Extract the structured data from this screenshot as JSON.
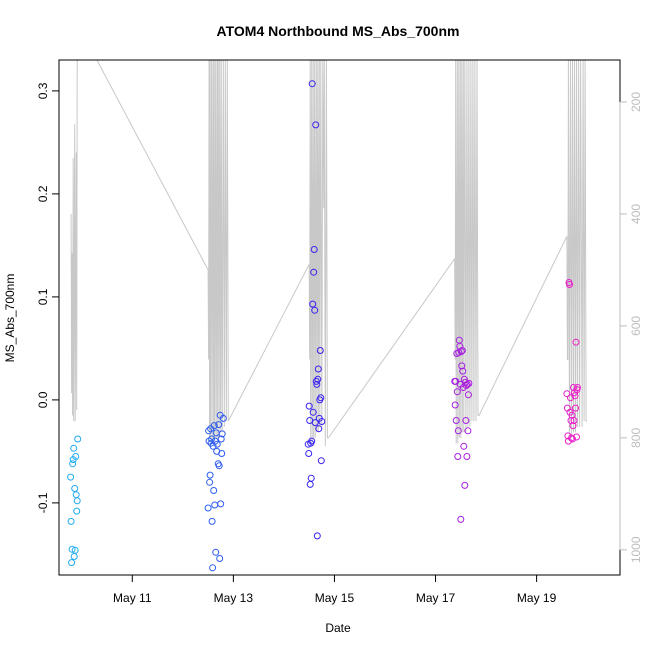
{
  "chart_data": {
    "type": "scatter",
    "title": "ATOM4 Northbound MS_Abs_700nm",
    "xlabel": "Date",
    "ylabel": "MS_Abs_700nm",
    "xlim": [
      9.55,
      20.65
    ],
    "ylim": [
      -0.17,
      0.33
    ],
    "x_ticks": [
      {
        "value": 11,
        "label": "May 11"
      },
      {
        "value": 13,
        "label": "May 13"
      },
      {
        "value": 15,
        "label": "May 15"
      },
      {
        "value": 17,
        "label": "May 17"
      },
      {
        "value": 19,
        "label": "May 19"
      }
    ],
    "y_ticks": [
      {
        "value": -0.1,
        "label": "-0.1"
      },
      {
        "value": 0.0,
        "label": "0.0"
      },
      {
        "value": 0.1,
        "label": "0.1"
      },
      {
        "value": 0.2,
        "label": "0.2"
      },
      {
        "value": 0.3,
        "label": "0.3"
      }
    ],
    "secondary_axis": {
      "side": "right",
      "reversed": true,
      "range": [
        1045,
        125
      ],
      "ticks": [
        {
          "value": 200,
          "label": "200"
        },
        {
          "value": 400,
          "label": "400"
        },
        {
          "value": 600,
          "label": "600"
        },
        {
          "value": 800,
          "label": "800"
        },
        {
          "value": 1000,
          "label": "1000"
        }
      ],
      "color": "#bdbdbd"
    },
    "depth_trace": {
      "color": "#c8c8c8",
      "x": [
        9.79,
        9.8,
        9.81,
        9.82,
        9.83,
        9.84,
        9.86,
        9.87,
        9.89,
        9.9,
        9.91,
        10.3,
        12.5,
        12.51,
        12.52,
        12.53,
        12.54,
        12.55,
        12.57,
        12.58,
        12.6,
        12.61,
        12.62,
        12.63,
        12.65,
        12.66,
        12.68,
        12.69,
        12.7,
        12.72,
        12.73,
        12.75,
        12.76,
        12.78,
        12.8,
        12.82,
        12.84,
        12.86,
        12.88,
        12.9,
        14.5,
        14.51,
        14.52,
        14.53,
        14.55,
        14.56,
        14.58,
        14.59,
        14.61,
        14.62,
        14.64,
        14.65,
        14.67,
        14.68,
        14.7,
        14.71,
        14.73,
        14.75,
        14.77,
        14.79,
        14.8,
        14.82,
        14.84,
        14.86,
        14.88,
        17.38,
        17.39,
        17.4,
        17.41,
        17.43,
        17.44,
        17.46,
        17.47,
        17.49,
        17.5,
        17.52,
        17.53,
        17.55,
        17.56,
        17.58,
        17.6,
        17.62,
        17.64,
        17.66,
        17.68,
        17.7,
        17.72,
        17.74,
        17.76,
        17.78,
        17.8,
        17.82,
        17.84,
        17.86,
        19.6,
        19.61,
        19.62,
        19.63,
        19.65,
        19.67,
        19.69,
        19.71,
        19.73,
        19.75,
        19.77,
        19.79,
        19.81,
        19.83,
        19.85,
        19.87,
        19.9,
        19.92,
        19.94,
        19.96,
        19.98,
        20.0
      ],
      "y": [
        400,
        720,
        470,
        760,
        300,
        770,
        240,
        770,
        290,
        750,
        125,
        125,
        500,
        660,
        125,
        800,
        125,
        800,
        125,
        810,
        125,
        810,
        125,
        800,
        125,
        800,
        125,
        800,
        125,
        800,
        125,
        790,
        125,
        790,
        125,
        780,
        125,
        770,
        125,
        770,
        490,
        660,
        125,
        810,
        125,
        810,
        125,
        800,
        125,
        800,
        125,
        790,
        125,
        790,
        125,
        780,
        125,
        780,
        125,
        390,
        125,
        815,
        125,
        800,
        800,
        480,
        660,
        125,
        810,
        125,
        810,
        125,
        800,
        125,
        800,
        125,
        790,
        125,
        790,
        125,
        790,
        125,
        780,
        125,
        780,
        125,
        770,
        125,
        770,
        125,
        770,
        125,
        760,
        760,
        440,
        660,
        660,
        125,
        800,
        125,
        800,
        125,
        790,
        125,
        790,
        125,
        780,
        125,
        780,
        125,
        780,
        125,
        770,
        125,
        770,
        770
      ]
    },
    "points": [
      {
        "x": 9.78,
        "y": -0.075
      },
      {
        "x": 9.79,
        "y": -0.118
      },
      {
        "x": 9.8,
        "y": -0.158
      },
      {
        "x": 9.81,
        "y": -0.145
      },
      {
        "x": 9.82,
        "y": -0.062
      },
      {
        "x": 9.83,
        "y": -0.058
      },
      {
        "x": 9.84,
        "y": -0.047
      },
      {
        "x": 9.85,
        "y": -0.152
      },
      {
        "x": 9.86,
        "y": -0.086
      },
      {
        "x": 9.87,
        "y": -0.146
      },
      {
        "x": 9.88,
        "y": -0.055
      },
      {
        "x": 9.89,
        "y": -0.092
      },
      {
        "x": 9.9,
        "y": -0.108
      },
      {
        "x": 9.91,
        "y": -0.098
      },
      {
        "x": 9.92,
        "y": -0.038
      },
      {
        "x": 12.5,
        "y": -0.105
      },
      {
        "x": 12.51,
        "y": -0.03
      },
      {
        "x": 12.52,
        "y": -0.04
      },
      {
        "x": 12.53,
        "y": -0.08
      },
      {
        "x": 12.54,
        "y": -0.073
      },
      {
        "x": 12.55,
        "y": -0.028
      },
      {
        "x": 12.56,
        "y": -0.042
      },
      {
        "x": 12.57,
        "y": -0.038
      },
      {
        "x": 12.58,
        "y": -0.118
      },
      {
        "x": 12.59,
        "y": -0.163
      },
      {
        "x": 12.6,
        "y": -0.045
      },
      {
        "x": 12.61,
        "y": -0.088
      },
      {
        "x": 12.62,
        "y": -0.025
      },
      {
        "x": 12.63,
        "y": -0.102
      },
      {
        "x": 12.64,
        "y": -0.04
      },
      {
        "x": 12.65,
        "y": -0.148
      },
      {
        "x": 12.66,
        "y": -0.032
      },
      {
        "x": 12.67,
        "y": -0.05
      },
      {
        "x": 12.68,
        "y": -0.043
      },
      {
        "x": 12.7,
        "y": -0.062
      },
      {
        "x": 12.71,
        "y": -0.024
      },
      {
        "x": 12.72,
        "y": -0.064
      },
      {
        "x": 12.73,
        "y": -0.154
      },
      {
        "x": 12.74,
        "y": -0.015
      },
      {
        "x": 12.75,
        "y": -0.101
      },
      {
        "x": 12.76,
        "y": -0.038
      },
      {
        "x": 12.77,
        "y": -0.052
      },
      {
        "x": 12.78,
        "y": -0.033
      },
      {
        "x": 12.8,
        "y": -0.018
      },
      {
        "x": 14.48,
        "y": -0.043
      },
      {
        "x": 14.49,
        "y": -0.052
      },
      {
        "x": 14.5,
        "y": -0.006
      },
      {
        "x": 14.51,
        "y": -0.02
      },
      {
        "x": 14.52,
        "y": -0.082
      },
      {
        "x": 14.53,
        "y": -0.042
      },
      {
        "x": 14.54,
        "y": -0.076
      },
      {
        "x": 14.55,
        "y": -0.04
      },
      {
        "x": 14.56,
        "y": 0.307
      },
      {
        "x": 14.57,
        "y": 0.093
      },
      {
        "x": 14.58,
        "y": -0.012
      },
      {
        "x": 14.59,
        "y": 0.124
      },
      {
        "x": 14.6,
        "y": 0.146
      },
      {
        "x": 14.61,
        "y": 0.087
      },
      {
        "x": 14.62,
        "y": -0.022
      },
      {
        "x": 14.63,
        "y": 0.267
      },
      {
        "x": 14.64,
        "y": 0.018
      },
      {
        "x": 14.65,
        "y": 0.015
      },
      {
        "x": 14.66,
        "y": -0.132
      },
      {
        "x": 14.67,
        "y": 0.02
      },
      {
        "x": 14.68,
        "y": 0.03
      },
      {
        "x": 14.69,
        "y": -0.028
      },
      {
        "x": 14.7,
        "y": -0.018
      },
      {
        "x": 14.71,
        "y": 0.0
      },
      {
        "x": 14.72,
        "y": 0.048
      },
      {
        "x": 14.73,
        "y": 0.002
      },
      {
        "x": 14.74,
        "y": -0.059
      },
      {
        "x": 14.75,
        "y": -0.021
      },
      {
        "x": 17.38,
        "y": 0.018
      },
      {
        "x": 17.39,
        "y": -0.005
      },
      {
        "x": 17.4,
        "y": 0.018
      },
      {
        "x": 17.41,
        "y": -0.02
      },
      {
        "x": 17.42,
        "y": 0.045
      },
      {
        "x": 17.43,
        "y": 0.008
      },
      {
        "x": 17.44,
        "y": -0.055
      },
      {
        "x": 17.45,
        "y": -0.03
      },
      {
        "x": 17.46,
        "y": 0.046
      },
      {
        "x": 17.47,
        "y": 0.058
      },
      {
        "x": 17.48,
        "y": 0.052
      },
      {
        "x": 17.49,
        "y": 0.015
      },
      {
        "x": 17.5,
        "y": -0.116
      },
      {
        "x": 17.51,
        "y": 0.047
      },
      {
        "x": 17.52,
        "y": 0.033
      },
      {
        "x": 17.53,
        "y": 0.048
      },
      {
        "x": 17.54,
        "y": 0.028
      },
      {
        "x": 17.55,
        "y": 0.012
      },
      {
        "x": 17.56,
        "y": -0.045
      },
      {
        "x": 17.57,
        "y": 0.02
      },
      {
        "x": 17.58,
        "y": -0.083
      },
      {
        "x": 17.59,
        "y": 0.017
      },
      {
        "x": 17.6,
        "y": -0.02
      },
      {
        "x": 17.61,
        "y": 0.014
      },
      {
        "x": 17.62,
        "y": -0.055
      },
      {
        "x": 17.63,
        "y": 0.015
      },
      {
        "x": 17.64,
        "y": -0.03
      },
      {
        "x": 17.65,
        "y": 0.005
      },
      {
        "x": 17.66,
        "y": 0.016
      },
      {
        "x": 19.6,
        "y": 0.006
      },
      {
        "x": 19.61,
        "y": -0.008
      },
      {
        "x": 19.62,
        "y": -0.035
      },
      {
        "x": 19.63,
        "y": -0.04
      },
      {
        "x": 19.64,
        "y": 0.114
      },
      {
        "x": 19.65,
        "y": 0.112
      },
      {
        "x": 19.66,
        "y": -0.012
      },
      {
        "x": 19.67,
        "y": 0.002
      },
      {
        "x": 19.68,
        "y": -0.02
      },
      {
        "x": 19.69,
        "y": -0.037
      },
      {
        "x": 19.7,
        "y": -0.015
      },
      {
        "x": 19.71,
        "y": -0.038
      },
      {
        "x": 19.72,
        "y": -0.025
      },
      {
        "x": 19.73,
        "y": 0.012
      },
      {
        "x": 19.74,
        "y": -0.02
      },
      {
        "x": 19.75,
        "y": 0.007
      },
      {
        "x": 19.76,
        "y": 0.004
      },
      {
        "x": 19.77,
        "y": -0.008
      },
      {
        "x": 19.78,
        "y": 0.056
      },
      {
        "x": 19.79,
        "y": -0.036
      },
      {
        "x": 19.8,
        "y": 0.01
      },
      {
        "x": 19.81,
        "y": 0.012
      }
    ],
    "color_ramp": [
      "#1fb0f2",
      "#2b68ef",
      "#3a1ef0",
      "#a21fe0",
      "#f01fc8"
    ]
  }
}
